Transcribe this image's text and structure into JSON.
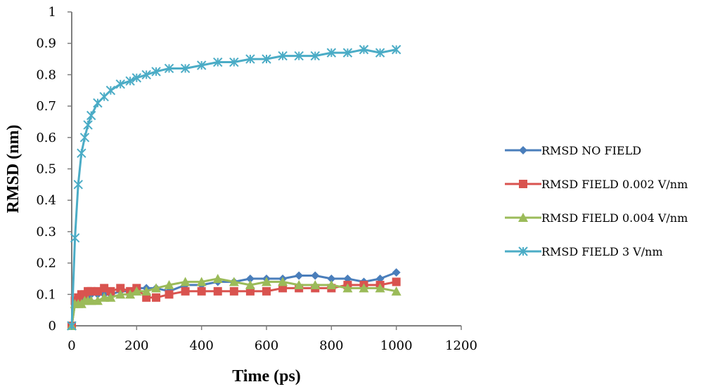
{
  "chart_data": {
    "type": "line",
    "title": "",
    "xlabel": "Time (ps)",
    "ylabel": "RMSD (nm)",
    "xlim": [
      0,
      1200
    ],
    "ylim": [
      0,
      1
    ],
    "x_ticks": [
      0,
      200,
      400,
      600,
      800,
      1000,
      1200
    ],
    "y_ticks": [
      0,
      0.1,
      0.2,
      0.3,
      0.4,
      0.5,
      0.6,
      0.7,
      0.8,
      0.9,
      1
    ],
    "x_tick_labels": [
      "0",
      "200",
      "400",
      "600",
      "800",
      "1000",
      "1200"
    ],
    "y_tick_labels": [
      "0",
      "0.1",
      "0.2",
      "0.3",
      "0.4",
      "0.5",
      "0.6",
      "0.7",
      "0.8",
      "0.9",
      "1"
    ],
    "grid": false,
    "legend_position": "right",
    "x": [
      0,
      10,
      20,
      30,
      40,
      50,
      60,
      80,
      100,
      120,
      150,
      180,
      200,
      230,
      260,
      300,
      350,
      400,
      450,
      500,
      550,
      600,
      650,
      700,
      750,
      800,
      850,
      900,
      950,
      1000
    ],
    "series": [
      {
        "name": "RMSD NO FIELD",
        "color": "#4a7ebb",
        "marker": "diamond",
        "values": [
          0,
          0.07,
          0.08,
          0.08,
          0.09,
          0.09,
          0.1,
          0.1,
          0.1,
          0.1,
          0.11,
          0.11,
          0.12,
          0.12,
          0.12,
          0.11,
          0.13,
          0.13,
          0.14,
          0.14,
          0.15,
          0.15,
          0.15,
          0.16,
          0.16,
          0.15,
          0.15,
          0.14,
          0.15,
          0.17
        ]
      },
      {
        "name": "RMSD FIELD 0.002 V/nm",
        "color": "#d9534f",
        "marker": "square",
        "values": [
          0,
          0.08,
          0.09,
          0.1,
          0.1,
          0.11,
          0.11,
          0.11,
          0.12,
          0.11,
          0.12,
          0.11,
          0.12,
          0.09,
          0.09,
          0.1,
          0.11,
          0.11,
          0.11,
          0.11,
          0.11,
          0.11,
          0.12,
          0.12,
          0.12,
          0.12,
          0.13,
          0.13,
          0.13,
          0.14
        ]
      },
      {
        "name": "RMSD FIELD 0.004 V/nm",
        "color": "#9bbb59",
        "marker": "triangle",
        "values": [
          0,
          0.07,
          0.07,
          0.07,
          0.08,
          0.08,
          0.08,
          0.08,
          0.09,
          0.09,
          0.1,
          0.1,
          0.11,
          0.11,
          0.12,
          0.13,
          0.14,
          0.14,
          0.15,
          0.14,
          0.13,
          0.14,
          0.14,
          0.13,
          0.13,
          0.13,
          0.12,
          0.12,
          0.12,
          0.11
        ]
      },
      {
        "name": "RMSD FIELD 3 V/nm",
        "color": "#4bacc6",
        "marker": "star",
        "values": [
          0,
          0.28,
          0.45,
          0.55,
          0.6,
          0.64,
          0.67,
          0.71,
          0.73,
          0.75,
          0.77,
          0.78,
          0.79,
          0.8,
          0.81,
          0.82,
          0.82,
          0.83,
          0.84,
          0.84,
          0.85,
          0.85,
          0.86,
          0.86,
          0.86,
          0.87,
          0.87,
          0.88,
          0.87,
          0.88
        ]
      }
    ]
  }
}
